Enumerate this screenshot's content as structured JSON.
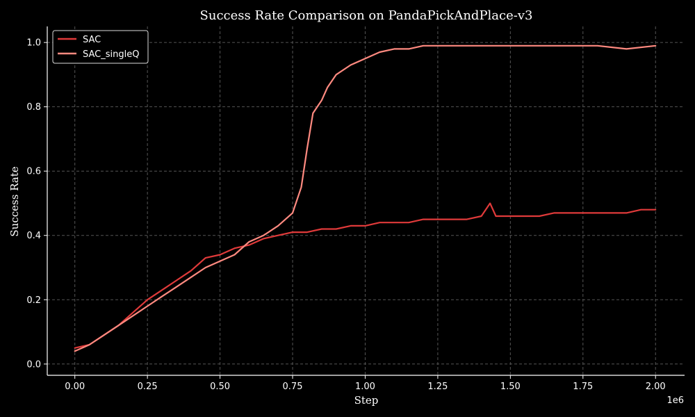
{
  "chart_data": {
    "type": "line",
    "title": "Success Rate Comparison on PandaPickAndPlace-v3",
    "xlabel": "Step",
    "ylabel": "Success Rate",
    "x_offset_label": "1e6",
    "xlim": [
      -0.095,
      2.1
    ],
    "ylim": [
      -0.035,
      1.05
    ],
    "x_ticks": [
      0,
      0.25,
      0.5,
      0.75,
      1.0,
      1.25,
      1.5,
      1.75,
      2.0
    ],
    "x_tick_labels": [
      "0.00",
      "0.25",
      "0.50",
      "0.75",
      "1.00",
      "1.25",
      "1.50",
      "1.75",
      "2.00"
    ],
    "y_ticks": [
      0,
      0.2,
      0.4,
      0.6,
      0.8,
      1.0
    ],
    "y_tick_labels": [
      "0.0",
      "0.2",
      "0.4",
      "0.6",
      "0.8",
      "1.0"
    ],
    "grid": true,
    "legend_position": "top-left",
    "series": [
      {
        "name": "SAC",
        "color": "#e03a3a",
        "x": [
          0.0,
          0.05,
          0.1,
          0.15,
          0.2,
          0.25,
          0.3,
          0.35,
          0.4,
          0.45,
          0.5,
          0.55,
          0.6,
          0.65,
          0.7,
          0.75,
          0.8,
          0.85,
          0.9,
          0.95,
          1.0,
          1.05,
          1.1,
          1.15,
          1.2,
          1.25,
          1.3,
          1.35,
          1.4,
          1.43,
          1.45,
          1.5,
          1.55,
          1.6,
          1.65,
          1.7,
          1.75,
          1.8,
          1.85,
          1.9,
          1.95,
          2.0
        ],
        "y": [
          0.05,
          0.06,
          0.09,
          0.12,
          0.16,
          0.2,
          0.23,
          0.26,
          0.29,
          0.33,
          0.34,
          0.36,
          0.37,
          0.39,
          0.4,
          0.41,
          0.41,
          0.42,
          0.42,
          0.43,
          0.43,
          0.44,
          0.44,
          0.44,
          0.45,
          0.45,
          0.45,
          0.45,
          0.46,
          0.5,
          0.46,
          0.46,
          0.46,
          0.46,
          0.47,
          0.47,
          0.47,
          0.47,
          0.47,
          0.47,
          0.48,
          0.48
        ]
      },
      {
        "name": "SAC_singleQ",
        "color": "#ff8a80",
        "x": [
          0.0,
          0.05,
          0.1,
          0.15,
          0.2,
          0.25,
          0.3,
          0.35,
          0.4,
          0.45,
          0.5,
          0.55,
          0.6,
          0.65,
          0.7,
          0.75,
          0.78,
          0.8,
          0.82,
          0.85,
          0.87,
          0.9,
          0.95,
          1.0,
          1.05,
          1.1,
          1.15,
          1.2,
          1.25,
          1.3,
          1.35,
          1.4,
          1.5,
          1.6,
          1.7,
          1.8,
          1.9,
          2.0
        ],
        "y": [
          0.04,
          0.06,
          0.09,
          0.12,
          0.15,
          0.18,
          0.21,
          0.24,
          0.27,
          0.3,
          0.32,
          0.34,
          0.38,
          0.4,
          0.43,
          0.47,
          0.55,
          0.67,
          0.78,
          0.82,
          0.86,
          0.9,
          0.93,
          0.95,
          0.97,
          0.98,
          0.98,
          0.99,
          0.99,
          0.99,
          0.99,
          0.99,
          0.99,
          0.99,
          0.99,
          0.99,
          0.98,
          0.99
        ]
      }
    ]
  }
}
